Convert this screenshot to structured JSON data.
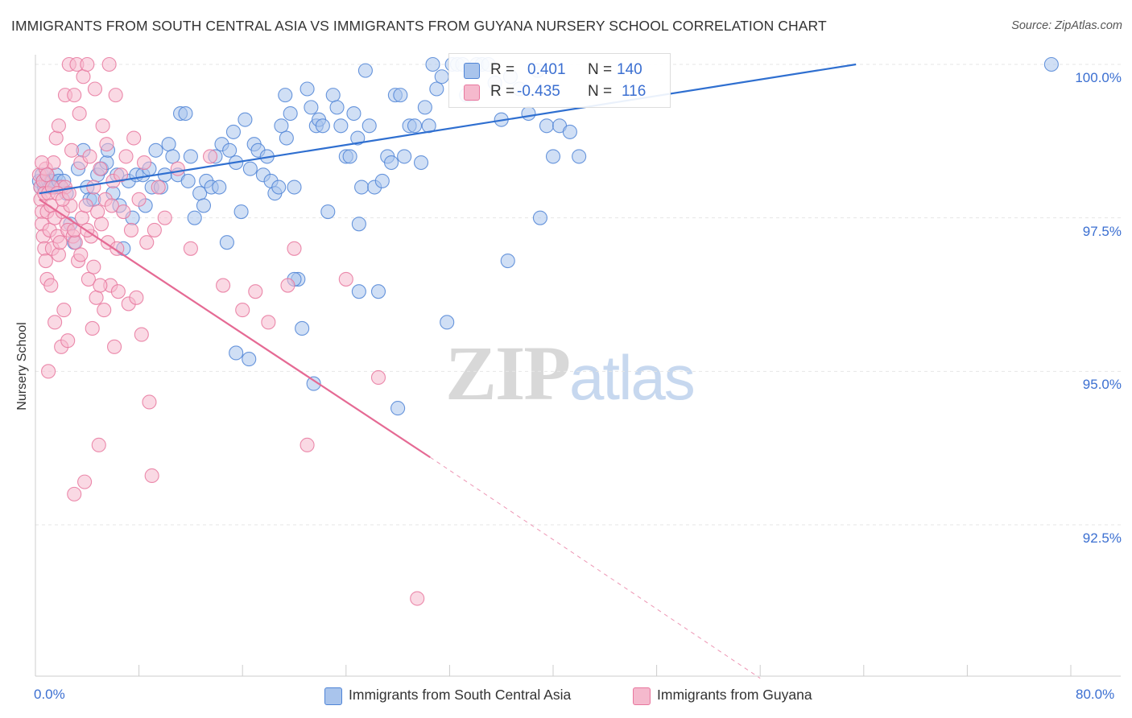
{
  "title": "IMMIGRANTS FROM SOUTH CENTRAL ASIA VS IMMIGRANTS FROM GUYANA NURSERY SCHOOL CORRELATION CHART",
  "source": "Source: ZipAtlas.com",
  "watermark": {
    "zip": "ZIP",
    "atlas": "atlas"
  },
  "legend": {
    "r_label": "R =",
    "n_label": "N =",
    "rows": [
      {
        "r": "0.401",
        "n": "140"
      },
      {
        "r": "-0.435",
        "n": "116"
      }
    ]
  },
  "colors": {
    "blue_fill": "#a9c4ec",
    "blue_stroke": "#4f84d6",
    "blue_line": "#2f6fd0",
    "pink_fill": "#f5b9cd",
    "pink_stroke": "#e8779e",
    "pink_line": "#e56a94",
    "grid": "#e6e6e6",
    "tick_label": "#3b6fd1"
  },
  "chart_data": {
    "type": "scatter",
    "title": "IMMIGRANTS FROM SOUTH CENTRAL ASIA VS IMMIGRANTS FROM GUYANA NURSERY SCHOOL CORRELATION CHART",
    "xlabel": "",
    "ylabel": "Nursery School",
    "xlim": [
      0,
      80
    ],
    "ylim": [
      90,
      100.3
    ],
    "x_tick_labels": [
      "0.0%",
      "80.0%"
    ],
    "y_ticks": [
      {
        "value": 100,
        "label": "100.0%"
      },
      {
        "value": 97.5,
        "label": "97.5%"
      },
      {
        "value": 95,
        "label": "95.0%"
      },
      {
        "value": 92.5,
        "label": "92.5%"
      }
    ],
    "x_minor_ticks": [
      0,
      8,
      16,
      24,
      32,
      40,
      48,
      56,
      64,
      72,
      80
    ],
    "grid": true,
    "legend_placement": "top-center",
    "series": [
      {
        "name": "Immigrants from South Central Asia",
        "color": "#a9c4ec",
        "trend": {
          "x0": 0.3,
          "y0": 97.9,
          "x1": 63.4,
          "y1": 100.0,
          "dashed_to": null
        },
        "points": [
          [
            0.3,
            98.1
          ],
          [
            0.4,
            98.0
          ],
          [
            0.5,
            98.2
          ],
          [
            0.6,
            98.1
          ],
          [
            0.7,
            98.0
          ],
          [
            0.8,
            98.1
          ],
          [
            0.9,
            98.2
          ],
          [
            1.0,
            98.1
          ],
          [
            1.1,
            98.0
          ],
          [
            1.2,
            98.1
          ],
          [
            1.3,
            98.1
          ],
          [
            1.5,
            98.0
          ],
          [
            1.6,
            98.2
          ],
          [
            1.8,
            98.1
          ],
          [
            2.0,
            98.0
          ],
          [
            2.2,
            98.1
          ],
          [
            2.4,
            97.9
          ],
          [
            2.7,
            97.4
          ],
          [
            3.0,
            97.1
          ],
          [
            3.3,
            98.3
          ],
          [
            3.7,
            98.6
          ],
          [
            4.0,
            98.0
          ],
          [
            4.2,
            97.8
          ],
          [
            4.5,
            97.8
          ],
          [
            4.8,
            98.2
          ],
          [
            5.1,
            98.3
          ],
          [
            5.5,
            98.4
          ],
          [
            5.6,
            98.6
          ],
          [
            6.0,
            97.9
          ],
          [
            6.3,
            98.2
          ],
          [
            6.5,
            97.7
          ],
          [
            6.8,
            97.0
          ],
          [
            7.2,
            98.1
          ],
          [
            7.5,
            97.5
          ],
          [
            7.8,
            98.2
          ],
          [
            8.3,
            98.2
          ],
          [
            8.5,
            97.7
          ],
          [
            8.8,
            98.3
          ],
          [
            9.0,
            98.0
          ],
          [
            9.3,
            98.6
          ],
          [
            9.7,
            98.0
          ],
          [
            10.0,
            98.2
          ],
          [
            10.3,
            98.7
          ],
          [
            10.6,
            98.5
          ],
          [
            11.0,
            98.2
          ],
          [
            11.2,
            99.2
          ],
          [
            11.6,
            99.2
          ],
          [
            11.8,
            98.1
          ],
          [
            12.0,
            98.5
          ],
          [
            12.3,
            97.5
          ],
          [
            12.7,
            97.9
          ],
          [
            13.0,
            97.7
          ],
          [
            13.2,
            98.1
          ],
          [
            13.6,
            98.0
          ],
          [
            13.9,
            98.5
          ],
          [
            14.2,
            98.0
          ],
          [
            14.4,
            98.7
          ],
          [
            14.8,
            97.1
          ],
          [
            15.0,
            98.6
          ],
          [
            15.3,
            98.9
          ],
          [
            15.5,
            98.4
          ],
          [
            15.9,
            97.6
          ],
          [
            16.2,
            99.1
          ],
          [
            16.6,
            98.3
          ],
          [
            16.9,
            98.7
          ],
          [
            17.2,
            98.6
          ],
          [
            17.6,
            98.2
          ],
          [
            17.9,
            98.5
          ],
          [
            18.2,
            98.1
          ],
          [
            18.5,
            97.9
          ],
          [
            18.8,
            98.0
          ],
          [
            19.0,
            99.0
          ],
          [
            19.3,
            99.5
          ],
          [
            19.4,
            98.8
          ],
          [
            19.7,
            99.2
          ],
          [
            20.0,
            98.0
          ],
          [
            20.3,
            96.5
          ],
          [
            20.6,
            95.7
          ],
          [
            21.0,
            99.6
          ],
          [
            21.3,
            99.3
          ],
          [
            21.7,
            99.0
          ],
          [
            21.9,
            99.1
          ],
          [
            22.2,
            99.0
          ],
          [
            22.6,
            97.6
          ],
          [
            23.0,
            99.5
          ],
          [
            23.3,
            99.3
          ],
          [
            23.6,
            99.0
          ],
          [
            24.0,
            98.5
          ],
          [
            24.3,
            98.5
          ],
          [
            24.6,
            99.2
          ],
          [
            24.9,
            98.8
          ],
          [
            25.2,
            98.0
          ],
          [
            25.5,
            99.9
          ],
          [
            25.8,
            99.0
          ],
          [
            26.2,
            98.0
          ],
          [
            26.5,
            96.3
          ],
          [
            26.8,
            98.1
          ],
          [
            27.2,
            98.5
          ],
          [
            27.5,
            98.4
          ],
          [
            27.8,
            99.5
          ],
          [
            28.2,
            99.5
          ],
          [
            28.5,
            98.5
          ],
          [
            28.9,
            99.0
          ],
          [
            29.3,
            99.0
          ],
          [
            29.8,
            98.4
          ],
          [
            30.1,
            99.3
          ],
          [
            30.4,
            99.0
          ],
          [
            30.7,
            100.0
          ],
          [
            31.0,
            99.6
          ],
          [
            31.4,
            99.8
          ],
          [
            31.8,
            95.8
          ],
          [
            32.2,
            100.0
          ],
          [
            32.6,
            100.0
          ],
          [
            33.0,
            100.0
          ],
          [
            33.3,
            99.5
          ],
          [
            33.7,
            99.5
          ],
          [
            34.1,
            100.0
          ],
          [
            34.5,
            100.0
          ],
          [
            35.0,
            100.0
          ],
          [
            35.5,
            99.7
          ],
          [
            36.0,
            99.1
          ],
          [
            36.7,
            99.8
          ],
          [
            37.4,
            99.6
          ],
          [
            38.1,
            99.2
          ],
          [
            38.8,
            99.9
          ],
          [
            39.5,
            99.0
          ],
          [
            40.0,
            98.5
          ],
          [
            40.5,
            99.0
          ],
          [
            41.3,
            98.9
          ],
          [
            42.0,
            98.5
          ],
          [
            39.0,
            97.5
          ],
          [
            16.5,
            95.2
          ],
          [
            28.0,
            94.4
          ],
          [
            21.5,
            94.8
          ],
          [
            15.5,
            95.3
          ],
          [
            78.5,
            100.0
          ],
          [
            25.0,
            96.3
          ],
          [
            36.5,
            96.8
          ],
          [
            20.0,
            96.5
          ],
          [
            25.0,
            97.4
          ]
        ]
      },
      {
        "name": "Immigrants from Guyana",
        "color": "#f5b9cd",
        "trend": {
          "x0": 0.3,
          "y0": 97.8,
          "x1": 30.5,
          "y1": 93.6,
          "dashed_to": [
            56.0,
            90.0
          ]
        },
        "points": [
          [
            0.3,
            98.2
          ],
          [
            0.4,
            98.0
          ],
          [
            0.4,
            97.8
          ],
          [
            0.5,
            97.6
          ],
          [
            0.5,
            97.4
          ],
          [
            0.6,
            98.1
          ],
          [
            0.6,
            97.2
          ],
          [
            0.7,
            97.9
          ],
          [
            0.7,
            97.0
          ],
          [
            0.8,
            96.8
          ],
          [
            0.8,
            98.3
          ],
          [
            0.9,
            97.6
          ],
          [
            0.9,
            96.5
          ],
          [
            1.0,
            97.9
          ],
          [
            1.0,
            95.0
          ],
          [
            1.1,
            97.3
          ],
          [
            1.2,
            97.7
          ],
          [
            1.2,
            96.4
          ],
          [
            1.3,
            97.0
          ],
          [
            1.4,
            98.4
          ],
          [
            1.5,
            97.5
          ],
          [
            1.5,
            95.8
          ],
          [
            1.6,
            98.8
          ],
          [
            1.7,
            97.2
          ],
          [
            1.8,
            96.9
          ],
          [
            1.8,
            99.0
          ],
          [
            1.9,
            97.1
          ],
          [
            2.0,
            98.0
          ],
          [
            2.0,
            95.4
          ],
          [
            2.1,
            97.6
          ],
          [
            2.2,
            96.0
          ],
          [
            2.3,
            98.0
          ],
          [
            2.3,
            99.5
          ],
          [
            2.4,
            97.4
          ],
          [
            2.5,
            97.3
          ],
          [
            2.5,
            95.5
          ],
          [
            2.6,
            100.0
          ],
          [
            2.7,
            97.7
          ],
          [
            2.8,
            98.6
          ],
          [
            2.9,
            97.2
          ],
          [
            3.0,
            99.5
          ],
          [
            3.0,
            93.0
          ],
          [
            3.1,
            97.1
          ],
          [
            3.2,
            100.0
          ],
          [
            3.3,
            96.8
          ],
          [
            3.4,
            99.2
          ],
          [
            3.5,
            98.4
          ],
          [
            3.6,
            97.5
          ],
          [
            3.7,
            99.8
          ],
          [
            3.8,
            93.2
          ],
          [
            3.9,
            97.7
          ],
          [
            4.0,
            100.0
          ],
          [
            4.1,
            96.5
          ],
          [
            4.2,
            98.5
          ],
          [
            4.3,
            97.2
          ],
          [
            4.4,
            95.7
          ],
          [
            4.5,
            98.0
          ],
          [
            4.6,
            99.6
          ],
          [
            4.7,
            96.2
          ],
          [
            4.8,
            97.6
          ],
          [
            4.9,
            93.8
          ],
          [
            5.0,
            98.3
          ],
          [
            5.1,
            97.4
          ],
          [
            5.2,
            99.0
          ],
          [
            5.3,
            96.0
          ],
          [
            5.4,
            97.8
          ],
          [
            5.5,
            98.7
          ],
          [
            5.6,
            97.1
          ],
          [
            5.7,
            100.0
          ],
          [
            5.8,
            96.4
          ],
          [
            5.9,
            97.7
          ],
          [
            6.0,
            98.1
          ],
          [
            6.1,
            95.4
          ],
          [
            6.2,
            99.5
          ],
          [
            6.3,
            97.0
          ],
          [
            6.4,
            96.3
          ],
          [
            6.6,
            98.2
          ],
          [
            6.8,
            97.6
          ],
          [
            7.0,
            98.5
          ],
          [
            7.2,
            96.1
          ],
          [
            7.4,
            97.3
          ],
          [
            7.6,
            98.8
          ],
          [
            7.8,
            96.2
          ],
          [
            8.0,
            97.8
          ],
          [
            8.2,
            95.6
          ],
          [
            8.4,
            98.4
          ],
          [
            8.6,
            97.1
          ],
          [
            8.8,
            94.5
          ],
          [
            9.0,
            93.3
          ],
          [
            9.2,
            97.3
          ],
          [
            9.5,
            98.0
          ],
          [
            10.0,
            97.5
          ],
          [
            11.0,
            98.3
          ],
          [
            12.0,
            97.0
          ],
          [
            13.5,
            98.5
          ],
          [
            14.5,
            96.4
          ],
          [
            16.0,
            96.0
          ],
          [
            17.0,
            96.3
          ],
          [
            18.0,
            95.8
          ],
          [
            19.5,
            96.4
          ],
          [
            20.0,
            97.0
          ],
          [
            21.0,
            93.8
          ],
          [
            24.0,
            96.5
          ],
          [
            26.5,
            94.9
          ],
          [
            29.5,
            91.3
          ],
          [
            0.5,
            98.4
          ],
          [
            0.9,
            98.2
          ],
          [
            1.3,
            98.0
          ],
          [
            1.7,
            97.9
          ],
          [
            2.1,
            97.8
          ],
          [
            2.6,
            97.9
          ],
          [
            3.0,
            97.3
          ],
          [
            3.5,
            96.9
          ],
          [
            4.0,
            97.3
          ],
          [
            4.5,
            96.7
          ],
          [
            5.0,
            96.4
          ]
        ]
      }
    ]
  },
  "bottom_legend": [
    {
      "label": "Immigrants from South Central Asia"
    },
    {
      "label": "Immigrants from Guyana"
    }
  ]
}
